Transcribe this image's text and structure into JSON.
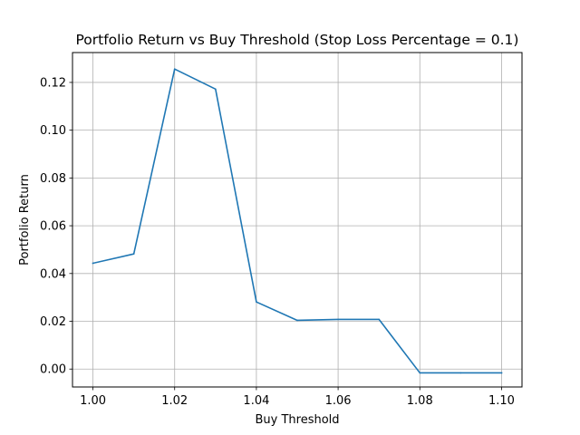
{
  "chart_data": {
    "type": "line",
    "title": "Portfolio Return vs Buy Threshold (Stop Loss Percentage = 0.1)",
    "xlabel": "Buy Threshold",
    "ylabel": "Portfolio Return",
    "xlim": [
      0.995,
      1.105
    ],
    "ylim": [
      -0.0075,
      0.1325
    ],
    "xticks": [
      1.0,
      1.02,
      1.04,
      1.06,
      1.08,
      1.1
    ],
    "xtick_labels": [
      "1.00",
      "1.02",
      "1.04",
      "1.06",
      "1.08",
      "1.10"
    ],
    "yticks": [
      0.0,
      0.02,
      0.04,
      0.06,
      0.08,
      0.1,
      0.12
    ],
    "ytick_labels": [
      "0.00",
      "0.02",
      "0.04",
      "0.06",
      "0.08",
      "0.10",
      "0.12"
    ],
    "grid": true,
    "series": [
      {
        "color": "#1f77b4",
        "x": [
          1.0,
          1.01,
          1.02,
          1.03,
          1.04,
          1.05,
          1.06,
          1.07,
          1.08,
          1.09,
          1.1
        ],
        "y": [
          0.0443,
          0.0482,
          0.1256,
          0.1172,
          0.0281,
          0.0204,
          0.0208,
          0.0208,
          -0.0016,
          -0.0016,
          -0.0016
        ]
      }
    ]
  }
}
